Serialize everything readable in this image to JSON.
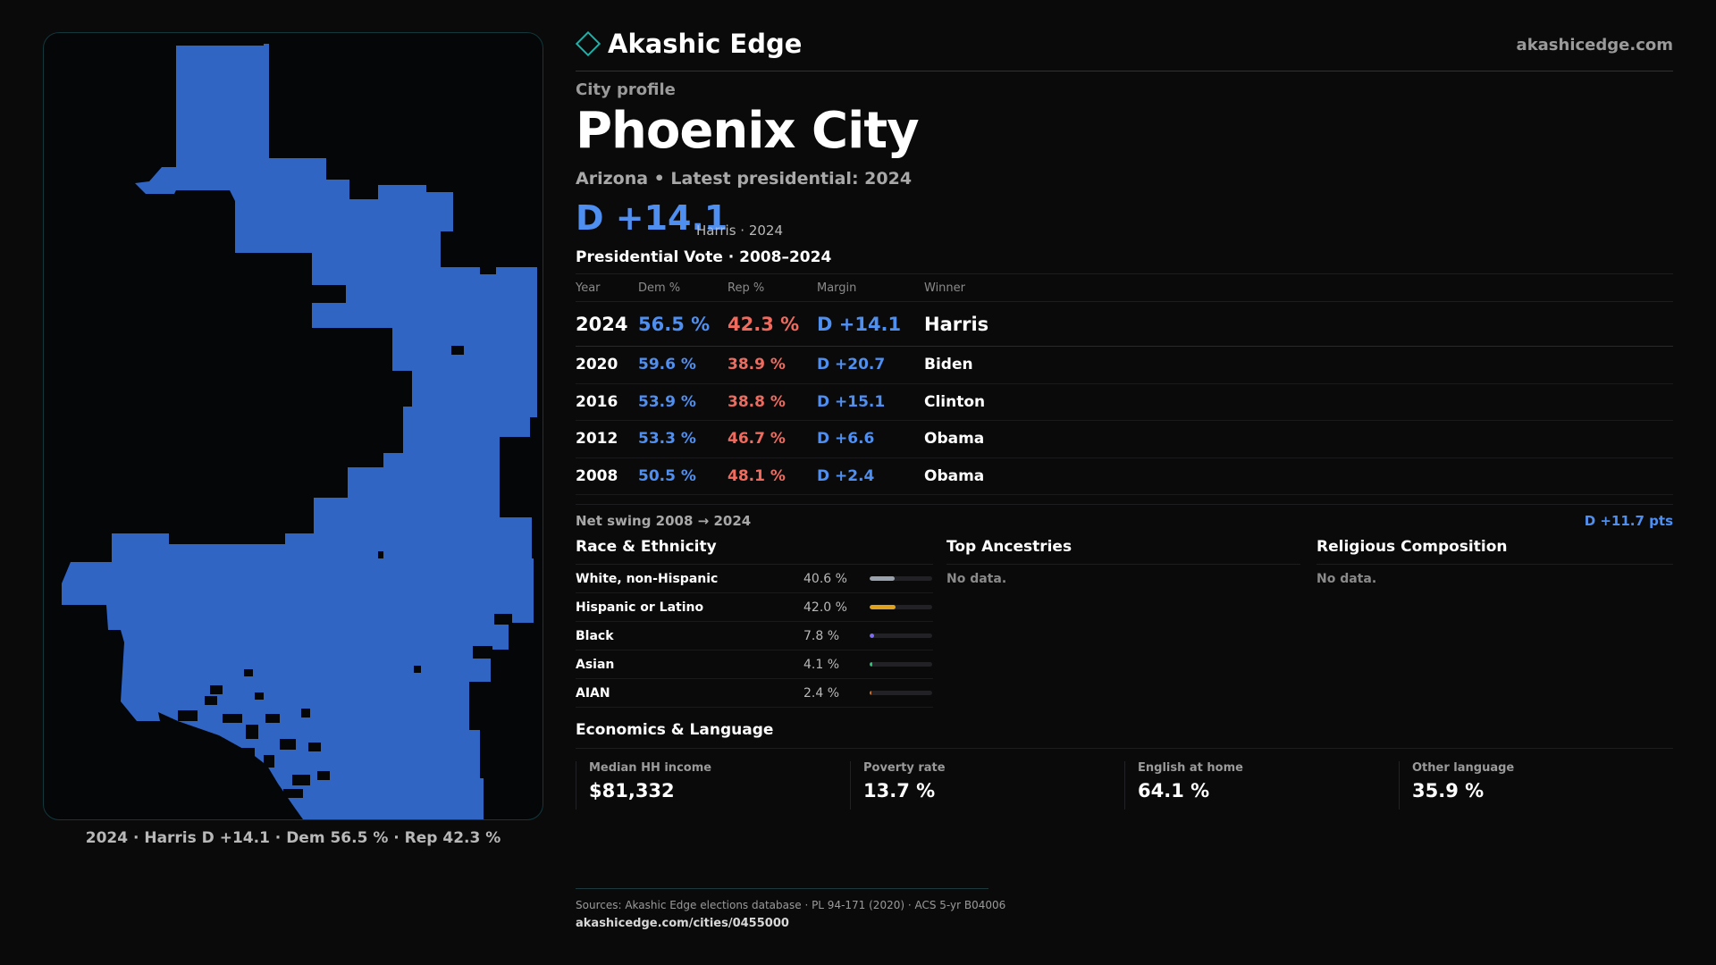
{
  "brand": {
    "name": "Akashic Edge",
    "url": "akashicedge.com",
    "accent": "#1fb0a8"
  },
  "map": {
    "caption": "2024 · Harris D +14.1 · Dem 56.5 % · Rep 42.3 %",
    "fill_color": "#3165c4"
  },
  "profile": {
    "kicker": "City profile",
    "city": "Phoenix City",
    "subtitle": "Arizona • Latest presidential: 2024",
    "headline_margin": "D +14.1",
    "headline_sub": "Harris · 2024"
  },
  "results": {
    "title": "Presidential Vote · 2008–2024",
    "headers": {
      "year": "Year",
      "dem": "Dem %",
      "rep": "Rep %",
      "margin": "Margin",
      "winner": "Winner"
    },
    "rows": [
      {
        "year": "2024",
        "dem": "56.5 %",
        "rep": "42.3 %",
        "margin": "D +14.1",
        "winner": "Harris"
      },
      {
        "year": "2020",
        "dem": "59.6 %",
        "rep": "38.9 %",
        "margin": "D +20.7",
        "winner": "Biden"
      },
      {
        "year": "2016",
        "dem": "53.9 %",
        "rep": "38.8 %",
        "margin": "D +15.1",
        "winner": "Clinton"
      },
      {
        "year": "2012",
        "dem": "53.3 %",
        "rep": "46.7 %",
        "margin": "D +6.6",
        "winner": "Obama"
      },
      {
        "year": "2008",
        "dem": "50.5 %",
        "rep": "48.1 %",
        "margin": "D +2.4",
        "winner": "Obama"
      }
    ],
    "swing_label": "Net swing 2008 → 2024",
    "swing_value": "D +11.7 pts"
  },
  "race": {
    "title": "Race & Ethnicity",
    "rows": [
      {
        "label": "White, non-Hispanic",
        "pct": "40.6 %",
        "value": 40.6,
        "color": "#9aa3ad"
      },
      {
        "label": "Hispanic or Latino",
        "pct": "42.0 %",
        "value": 42.0,
        "color": "#e0a21c"
      },
      {
        "label": "Black",
        "pct": "7.8 %",
        "value": 7.8,
        "color": "#7c6cf0"
      },
      {
        "label": "Asian",
        "pct": "4.1 %",
        "value": 4.1,
        "color": "#2fc07a"
      },
      {
        "label": "AIAN",
        "pct": "2.4 %",
        "value": 2.4,
        "color": "#c0702f"
      }
    ]
  },
  "ancestries": {
    "title": "Top Ancestries",
    "empty": "No data."
  },
  "religion": {
    "title": "Religious Composition",
    "empty": "No data."
  },
  "economics": {
    "title": "Economics & Language",
    "cards": [
      {
        "label": "Median HH income",
        "value": "$81,332"
      },
      {
        "label": "Poverty rate",
        "value": "13.7 %"
      },
      {
        "label": "English at home",
        "value": "64.1 %"
      },
      {
        "label": "Other language",
        "value": "35.9 %"
      }
    ]
  },
  "footer": {
    "sources": "Sources: Akashic Edge elections database · PL 94-171 (2020) · ACS 5-yr B04006",
    "url": "akashicedge.com/cities/0455000"
  }
}
